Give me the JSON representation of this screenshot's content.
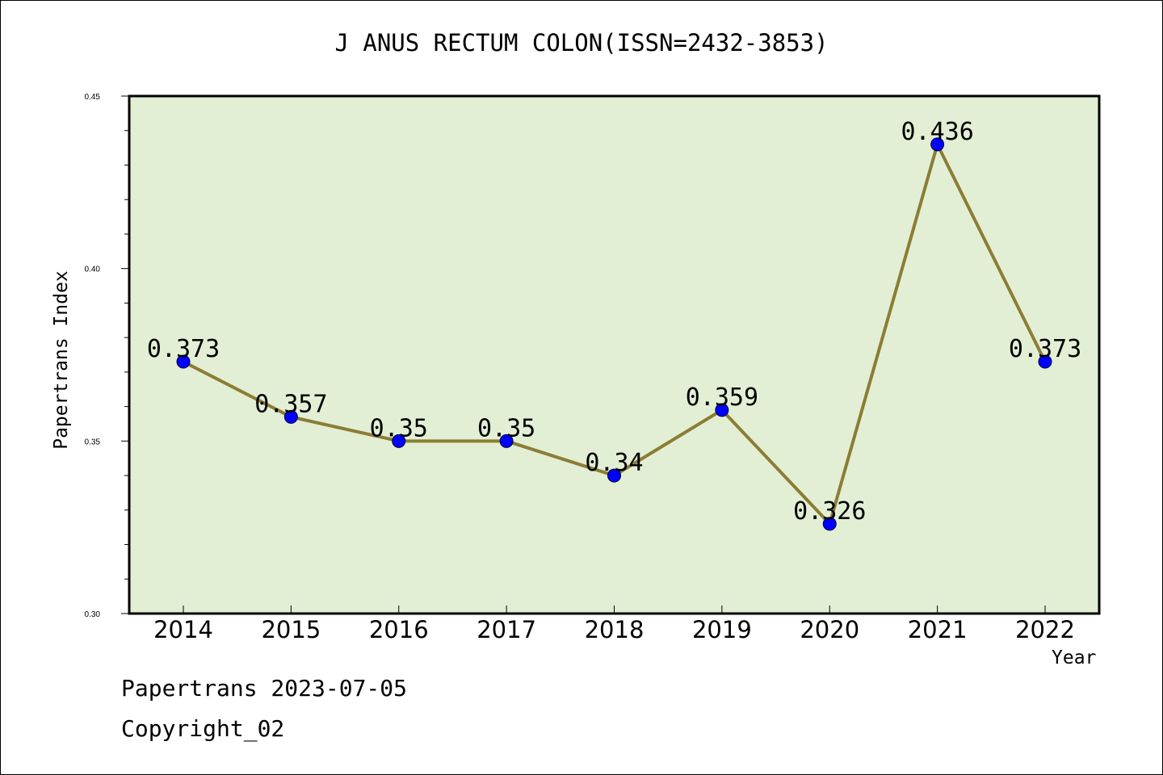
{
  "title": "J ANUS RECTUM COLON(ISSN=2432-3853)",
  "footer": {
    "line1": "Papertrans 2023-07-05",
    "line2": "Copyright_02"
  },
  "colors": {
    "plot_bg": "#e2efd5",
    "line": "#8b7d33",
    "marker": "#0000ff"
  },
  "chart_data": {
    "type": "line",
    "title": "J ANUS RECTUM COLON(ISSN=2432-3853)",
    "xlabel": "Year",
    "ylabel": "Papertrans Index",
    "categories": [
      "2014",
      "2015",
      "2016",
      "2017",
      "2018",
      "2019",
      "2020",
      "2021",
      "2022"
    ],
    "series": [
      {
        "values": [
          0.373,
          0.357,
          0.35,
          0.35,
          0.34,
          0.359,
          0.326,
          0.436,
          0.373
        ],
        "labels": [
          "0.373",
          "0.357",
          "0.35",
          "0.35",
          "0.34",
          "0.359",
          "0.326",
          "0.436",
          "0.373"
        ]
      }
    ],
    "ylim": [
      0.3,
      0.45
    ],
    "yticks": [
      "0.30",
      "0.35",
      "0.40",
      "0.45"
    ],
    "grid": false,
    "legend": "none"
  }
}
